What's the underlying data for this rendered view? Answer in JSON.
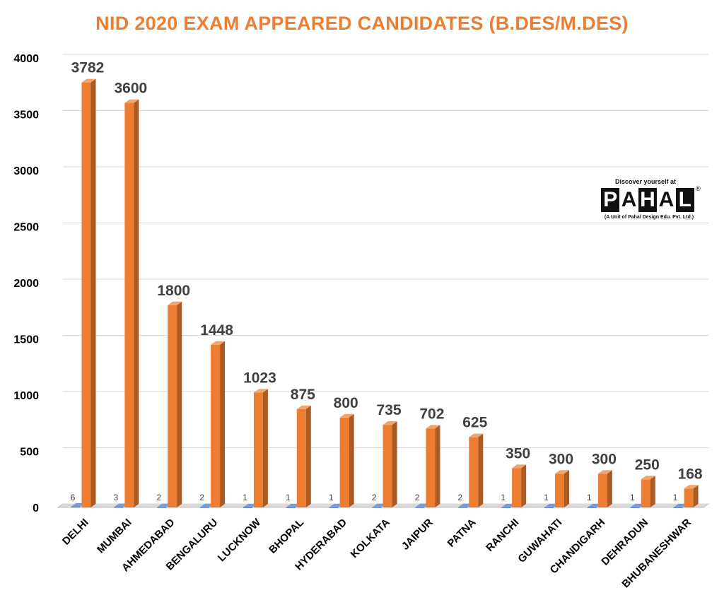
{
  "chart_data": {
    "type": "bar",
    "title": "NID 2020 EXAM APPEARED CANDIDATES (B.DES/M.DES)",
    "categories": [
      "DELHI",
      "MUMBAI",
      "AHMEDABAD",
      "BENGALURU",
      "LUCKNOW",
      "BHOPAL",
      "HYDERABAD",
      "KOLKATA",
      "JAIPUR",
      "PATNA",
      "RANCHI",
      "GUWAHATI",
      "CHANDIGARH",
      "DEHRADUN",
      "BHUBANESHWAR"
    ],
    "series": [
      {
        "values": [
          6,
          3,
          2,
          2,
          1,
          1,
          1,
          2,
          2,
          2,
          1,
          1,
          1,
          1,
          1
        ],
        "color": "#4472C4"
      },
      {
        "values": [
          3782,
          3600,
          1800,
          1448,
          1023,
          875,
          800,
          735,
          702,
          625,
          350,
          300,
          300,
          250,
          168
        ],
        "color": "#ED7D31"
      }
    ],
    "yticks": [
      "0",
      "500",
      "1000",
      "1500",
      "2000",
      "2500",
      "3000",
      "3500",
      "4000"
    ],
    "ylim": [
      0,
      4000
    ],
    "grid": true,
    "legend": "none"
  },
  "logo": {
    "tagline": "Discover yourself at",
    "letters": [
      "P",
      "A",
      "H",
      "A",
      "L"
    ],
    "registered": "®",
    "subtitle": "(A Unit of Pahal Design Edu. Pvt. Ltd.)"
  }
}
